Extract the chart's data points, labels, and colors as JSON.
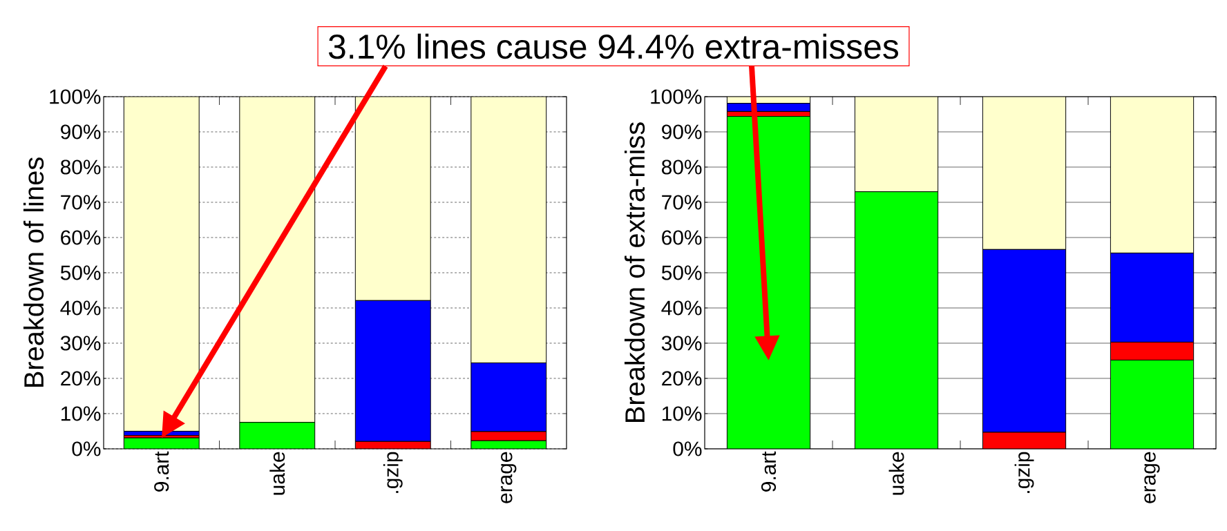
{
  "chart_data": [
    {
      "type": "bar",
      "stacked": true,
      "ylabel": "Breakdown of lines",
      "categories": [
        "9.art",
        "uake",
        ".gzip",
        "erage"
      ],
      "series": [
        {
          "color": "#00ff00",
          "values": [
            3.1,
            7.5,
            null,
            2.3
          ]
        },
        {
          "color": "#ff0000",
          "values": [
            0.7,
            null,
            2.1,
            2.6
          ]
        },
        {
          "color": "#0000ff",
          "values": [
            1.2,
            null,
            40,
            19.5
          ]
        },
        {
          "color": "#ffffcc",
          "values": [
            95,
            92.5,
            57.9,
            75.6
          ]
        }
      ],
      "ylim": [
        0,
        100
      ],
      "yticks": [
        {
          "value": 0,
          "label": "0%"
        },
        {
          "value": 10,
          "label": "10%"
        },
        {
          "value": 20,
          "label": "20%"
        },
        {
          "value": 30,
          "label": "30%"
        },
        {
          "value": 40,
          "label": "40%"
        },
        {
          "value": 50,
          "label": "50%"
        },
        {
          "value": 60,
          "label": "60%"
        },
        {
          "value": 70,
          "label": "70%"
        },
        {
          "value": 80,
          "label": "80%"
        },
        {
          "value": 90,
          "label": "90%"
        },
        {
          "value": 100,
          "label": "100%"
        }
      ],
      "grid": "y",
      "annotations": [
        "3.1% lines cause 94.4% extra-misses"
      ]
    },
    {
      "type": "bar",
      "stacked": true,
      "ylabel": "Breakdown of extra-miss",
      "categories": [
        "9.art",
        "uake",
        ".gzip",
        "erage"
      ],
      "series": [
        {
          "color": "#00ff00",
          "values": [
            94.4,
            73,
            null,
            25.2
          ]
        },
        {
          "color": "#ff0000",
          "values": [
            1.4,
            null,
            4.7,
            5.1
          ]
        },
        {
          "color": "#0000ff",
          "values": [
            2.3,
            null,
            51.9,
            25.3
          ]
        },
        {
          "color": "#ffffcc",
          "values": [
            1.9,
            27,
            43.4,
            44.4
          ]
        }
      ],
      "ylim": [
        0,
        100
      ],
      "yticks": [
        {
          "value": 0,
          "label": "0%"
        },
        {
          "value": 10,
          "label": "10%"
        },
        {
          "value": 20,
          "label": "20%"
        },
        {
          "value": 30,
          "label": "30%"
        },
        {
          "value": 40,
          "label": "40%"
        },
        {
          "value": 50,
          "label": "50%"
        },
        {
          "value": 60,
          "label": "60%"
        },
        {
          "value": 70,
          "label": "70%"
        },
        {
          "value": 80,
          "label": "80%"
        },
        {
          "value": 90,
          "label": "90%"
        },
        {
          "value": 100,
          "label": "100%"
        }
      ],
      "grid": "y"
    }
  ]
}
